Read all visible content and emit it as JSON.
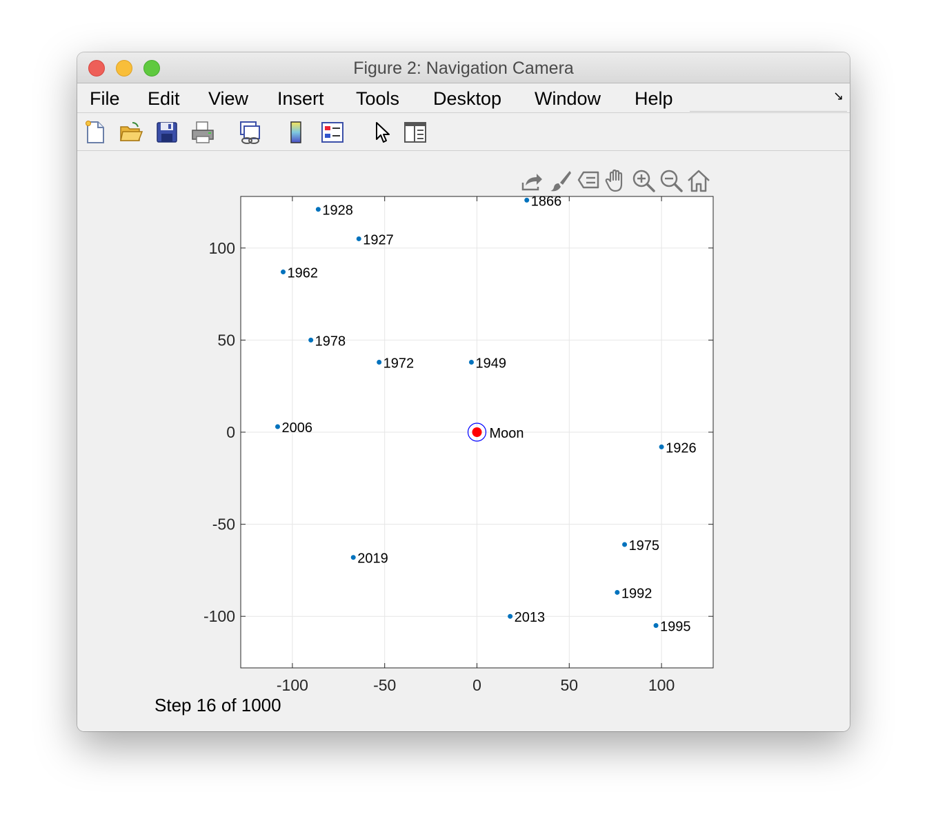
{
  "window": {
    "title": "Figure 2: Navigation Camera"
  },
  "menu": {
    "items": [
      {
        "id": "file",
        "label": "File"
      },
      {
        "id": "edit",
        "label": "Edit"
      },
      {
        "id": "view",
        "label": "View"
      },
      {
        "id": "insert",
        "label": "Insert"
      },
      {
        "id": "tools",
        "label": "Tools"
      },
      {
        "id": "desktop",
        "label": "Desktop"
      },
      {
        "id": "window",
        "label": "Window"
      },
      {
        "id": "help",
        "label": "Help"
      }
    ]
  },
  "toolbar": {
    "buttons": [
      "new-figure-icon",
      "open-file-icon",
      "save-icon",
      "print-icon",
      "link-plot-icon",
      "insert-colorbar-icon",
      "insert-legend-icon",
      "edit-plot-icon",
      "property-inspector-icon"
    ]
  },
  "axes_toolbar": {
    "buttons": [
      "export-icon",
      "brush-icon",
      "data-tips-icon",
      "pan-icon",
      "zoom-in-icon",
      "zoom-out-icon",
      "home-icon"
    ]
  },
  "status": {
    "text": "Step 16 of 1000"
  },
  "chart_data": {
    "type": "scatter",
    "title": "",
    "xlabel": "",
    "ylabel": "",
    "xlim": [
      -128,
      128
    ],
    "ylim": [
      -128,
      128
    ],
    "xticks": [
      -100,
      -50,
      0,
      50,
      100
    ],
    "yticks": [
      -100,
      -50,
      0,
      50,
      100
    ],
    "xtick_labels": [
      "-100",
      "-50",
      "0",
      "50",
      "100"
    ],
    "ytick_labels": [
      "-100",
      "-50",
      "0",
      "50",
      "100"
    ],
    "grid": true,
    "point_color": "#0072bd",
    "points": [
      {
        "label": "1866",
        "x": 27,
        "y": 126
      },
      {
        "label": "1928",
        "x": -86,
        "y": 121
      },
      {
        "label": "1927",
        "x": -64,
        "y": 105
      },
      {
        "label": "1962",
        "x": -105,
        "y": 87
      },
      {
        "label": "1978",
        "x": -90,
        "y": 50
      },
      {
        "label": "1972",
        "x": -53,
        "y": 38
      },
      {
        "label": "1949",
        "x": -3,
        "y": 38
      },
      {
        "label": "2006",
        "x": -108,
        "y": 3
      },
      {
        "label": "1926",
        "x": 100,
        "y": -8
      },
      {
        "label": "1975",
        "x": 80,
        "y": -61
      },
      {
        "label": "2019",
        "x": -67,
        "y": -68
      },
      {
        "label": "1992",
        "x": 76,
        "y": -87
      },
      {
        "label": "2013",
        "x": 18,
        "y": -100
      },
      {
        "label": "1995",
        "x": 97,
        "y": -105
      }
    ],
    "moon": {
      "label": "Moon",
      "x": 0,
      "y": 0,
      "fill_color": "#ff0000",
      "ring_color": "#0000ff"
    }
  }
}
